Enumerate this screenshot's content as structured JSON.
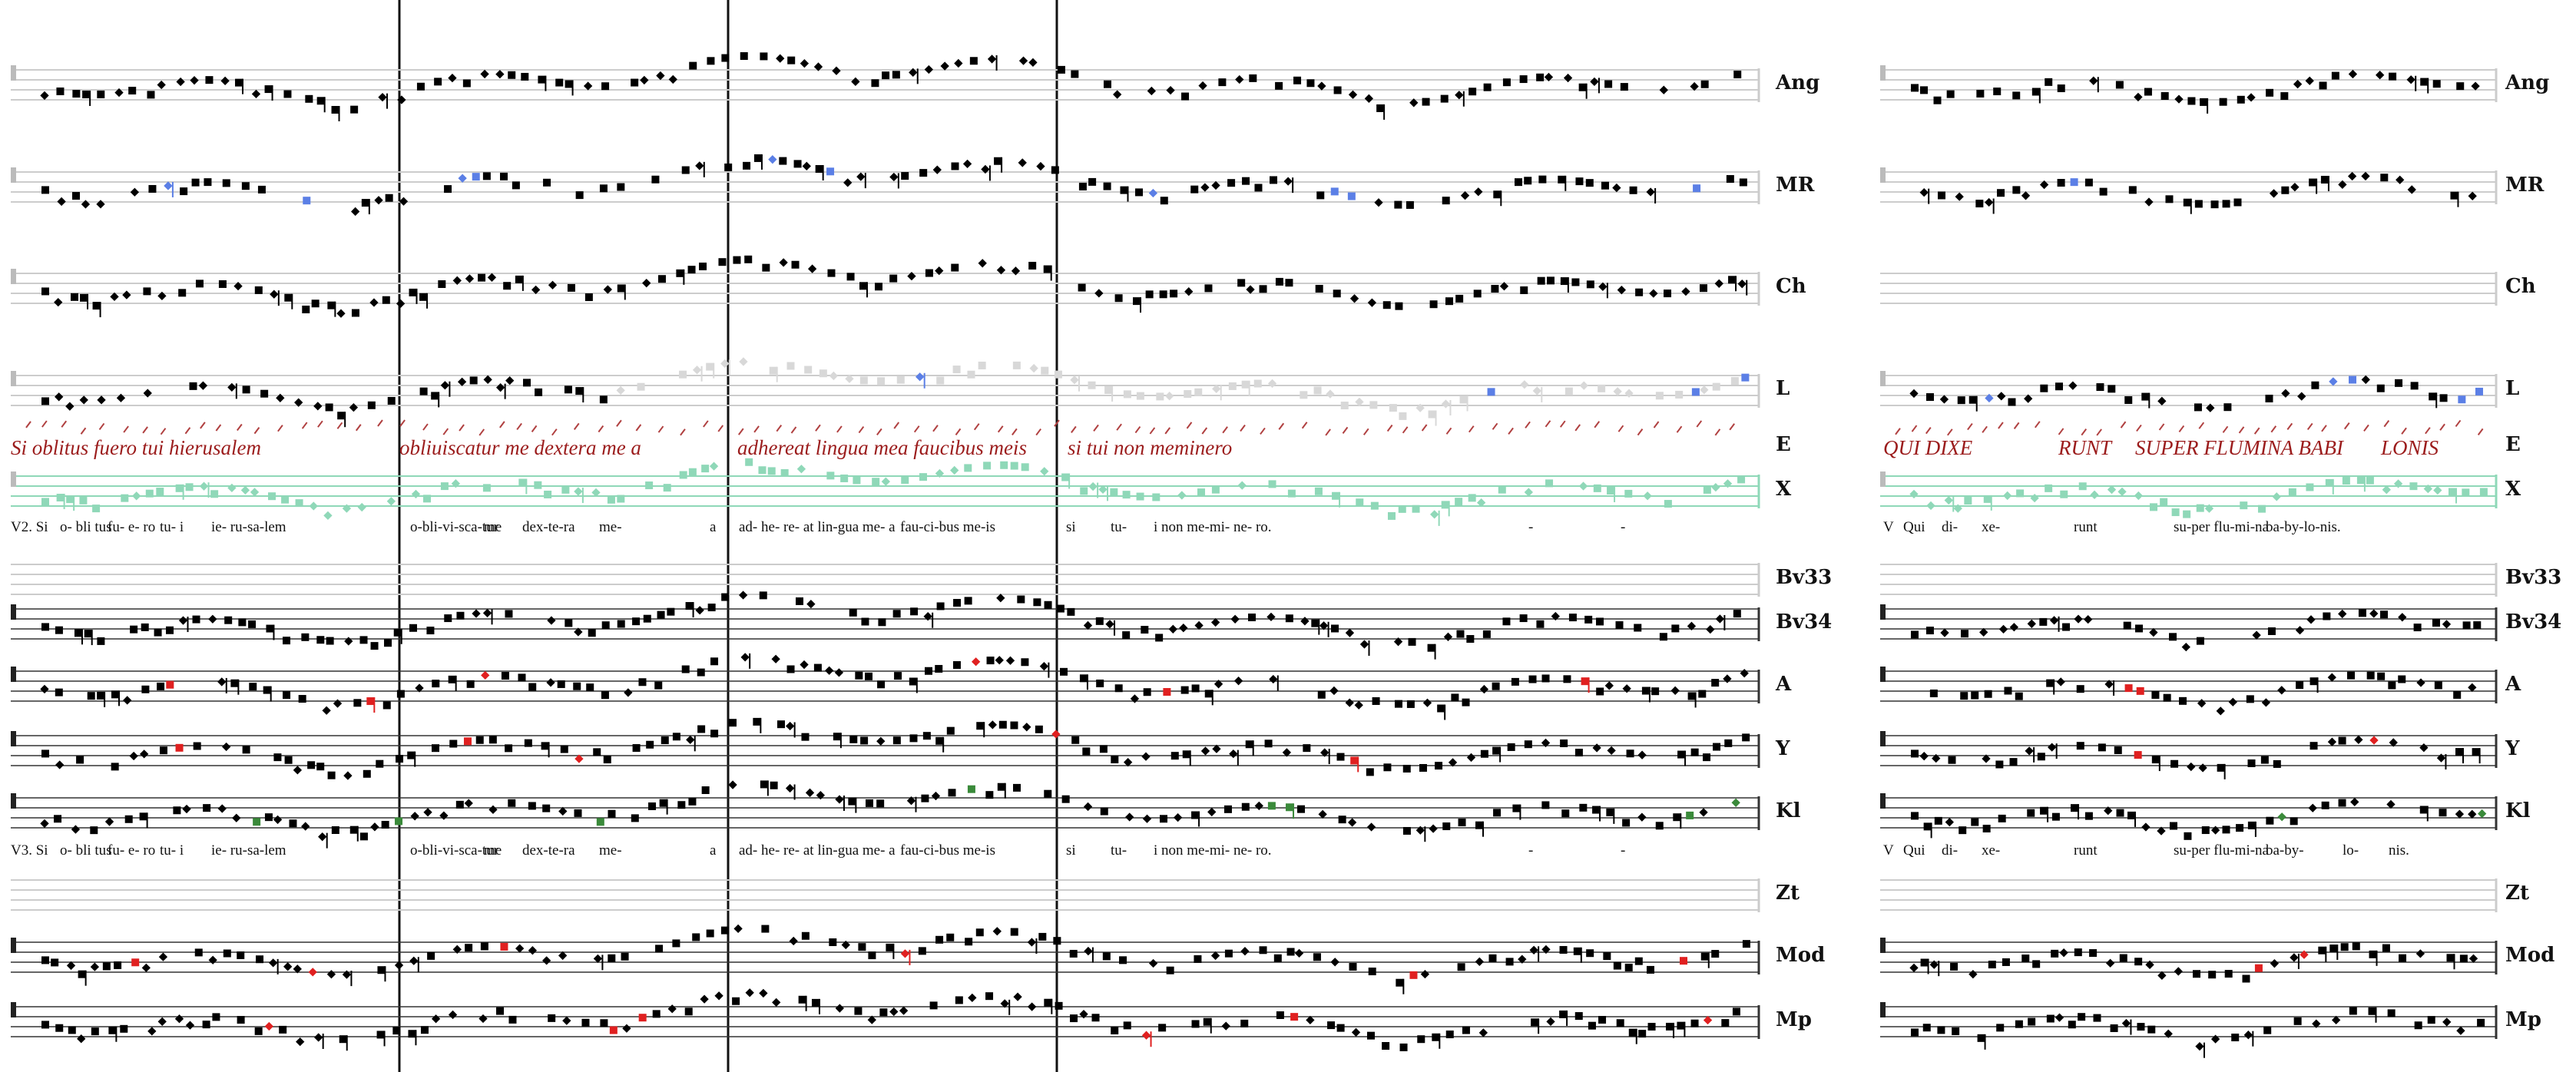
{
  "staff_labels": {
    "left": [
      "Ang",
      "MR",
      "Ch",
      "L",
      "E",
      "X",
      "Bv33",
      "Bv34",
      "A",
      "Y",
      "Kl",
      "Zt",
      "Mod",
      "Mp"
    ],
    "right": [
      "Ang",
      "MR",
      "Ch",
      "L",
      "E",
      "X",
      "Bv33",
      "Bv34",
      "A",
      "Y",
      "Kl",
      "Zt",
      "Mod",
      "Mp"
    ]
  },
  "manuscript_text": {
    "left": [
      "Si oblitus fuero tui hierusalem",
      "obliuiscatur me dextera me  a",
      "adhereat lingua mea faucibus meis",
      "si tui non meminero"
    ],
    "right": [
      "QUI DIXE",
      "RUNT",
      "SUPER FLUMINA BABI",
      "LONIS"
    ]
  },
  "lyrics_v2": {
    "left": [
      "V2. Si",
      "o- bli tus",
      "fu- e- ro",
      "tu- i",
      "ie- ru-sa-lem",
      "o-bli-vi-sca-tur",
      "me",
      "dex-te-ra",
      "me-",
      "a",
      "ad- he- re- at lin-gua me- a",
      "fau-ci-bus me-is",
      "si",
      "tu-",
      "i non me-mi- ne- ro.",
      "-",
      "-"
    ],
    "right": [
      "V",
      "Qui",
      "di-",
      "xe-",
      "runt",
      "su-per flu-mi-na",
      "ba-by-lo-nis."
    ]
  },
  "lyrics_v3": {
    "left": [
      "V3. Si",
      "o- bli tus",
      "fu- e- ro",
      "tu- i",
      "ie- ru-sa-lem",
      "o-bli-vi-sca-tur",
      "me",
      "dex-te-ra",
      "me-",
      "a",
      "ad- he- re- at lin-gua me- a",
      "fau-ci-bus me-is",
      "si",
      "tu-",
      "i non me-mi- ne- ro.",
      "-",
      "-"
    ],
    "right": [
      "V",
      "Qui",
      "di-",
      "xe-",
      "runt",
      "su-per flu-mi-na",
      "ba-by-",
      "lo-",
      "nis."
    ]
  }
}
